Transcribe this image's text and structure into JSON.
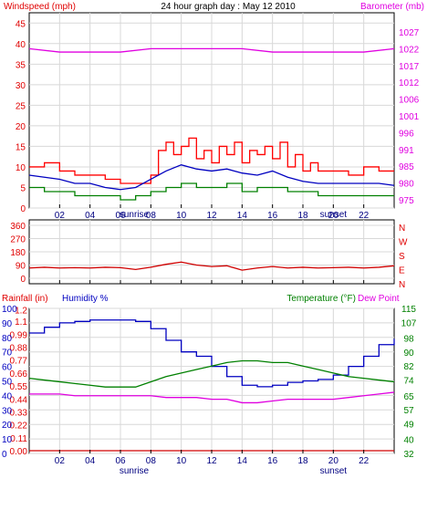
{
  "chart_data": [
    {
      "type": "line",
      "title": "24 hour graph day : May 12 2010",
      "left_label": "Windspeed (mph)",
      "right_label": "Barometer (mb)",
      "x_ticks": [
        "02",
        "04",
        "06",
        "08",
        "10",
        "12",
        "14",
        "16",
        "18",
        "20",
        "22"
      ],
      "x_range": [
        0,
        24
      ],
      "sunrise_label": "sunrise",
      "sunset_label": "sunset",
      "sunrise_hour": 6.9,
      "sunset_hour": 20.0,
      "y_left_ticks": [
        "0",
        "5",
        "10",
        "15",
        "20",
        "25",
        "30",
        "35",
        "40",
        "45"
      ],
      "y_left_range": [
        0,
        47.5
      ],
      "y_right_ticks": [
        "975",
        "980",
        "985",
        "991",
        "996",
        "1001",
        "1006",
        "1012",
        "1017",
        "1022",
        "1027"
      ],
      "series": [
        {
          "color": "#ff0000",
          "style": "step",
          "x": [
            0,
            1,
            2,
            3,
            4,
            5,
            6,
            7,
            8,
            8.5,
            9,
            9.5,
            10,
            10.5,
            11,
            11.5,
            12,
            12.5,
            13,
            13.5,
            14,
            14.5,
            15,
            15.5,
            16,
            16.5,
            17,
            17.5,
            18,
            18.5,
            19,
            20,
            21,
            22,
            23,
            24
          ],
          "y": [
            10,
            11,
            9,
            8,
            8,
            7,
            6,
            6,
            8,
            14,
            16,
            13,
            15,
            17,
            12,
            14,
            11,
            15,
            13,
            16,
            11,
            14,
            13,
            15,
            12,
            16,
            10,
            13,
            9,
            11,
            9,
            9,
            8,
            10,
            9,
            9
          ]
        },
        {
          "color": "#0000c0",
          "style": "line",
          "x": [
            0,
            1,
            2,
            3,
            4,
            5,
            6,
            7,
            8,
            9,
            10,
            11,
            12,
            13,
            14,
            15,
            16,
            17,
            18,
            19,
            20,
            21,
            22,
            23,
            24
          ],
          "y": [
            8,
            7.5,
            7,
            6,
            6,
            5,
            4.5,
            5,
            7,
            9,
            10.5,
            9.5,
            9,
            9.5,
            8.5,
            8,
            9,
            7.5,
            6.5,
            6,
            6,
            6,
            6,
            6,
            5.5
          ]
        },
        {
          "color": "#008000",
          "style": "step",
          "x": [
            0,
            1,
            2,
            3,
            4,
            5,
            6,
            7,
            8,
            9,
            10,
            11,
            12,
            13,
            14,
            15,
            16,
            17,
            18,
            19,
            20,
            21,
            22,
            23,
            24
          ],
          "y": [
            5,
            4,
            4,
            3,
            3,
            3,
            2,
            3,
            4,
            5,
            6,
            5,
            5,
            6,
            4,
            5,
            5,
            4,
            4,
            3,
            3,
            3,
            3,
            3,
            3
          ]
        },
        {
          "color": "#e000e0",
          "axis": "right",
          "style": "line",
          "x": [
            0,
            2,
            4,
            6,
            8,
            10,
            12,
            14,
            16,
            18,
            20,
            22,
            24
          ],
          "y": [
            1022,
            1021,
            1021,
            1021,
            1022,
            1022,
            1022,
            1022,
            1021,
            1021,
            1021,
            1021,
            1022
          ]
        }
      ]
    },
    {
      "type": "line",
      "left_ticks": [
        "360",
        "270",
        "180",
        "90",
        "0"
      ],
      "y_range": [
        0,
        360
      ],
      "right_letters": [
        "N",
        "W",
        "S",
        "E",
        "N"
      ],
      "x_ticks": [
        "02",
        "04",
        "06",
        "08",
        "10",
        "12",
        "14",
        "16",
        "18",
        "20",
        "22"
      ],
      "x_range": [
        0,
        24
      ],
      "series": [
        {
          "color": "#d00000",
          "x": [
            0,
            1,
            2,
            3,
            4,
            5,
            6,
            7,
            8,
            9,
            10,
            11,
            12,
            13,
            14,
            15,
            16,
            17,
            18,
            19,
            20,
            21,
            22,
            23,
            24
          ],
          "y": [
            70,
            75,
            70,
            72,
            70,
            75,
            72,
            60,
            75,
            95,
            110,
            90,
            80,
            85,
            55,
            70,
            80,
            70,
            75,
            70,
            72,
            75,
            70,
            75,
            85
          ]
        }
      ]
    },
    {
      "type": "line",
      "left_label_1": "Rainfall (in)",
      "left_label_2": "Humidity %",
      "right_label_1": "Temperature (°F)",
      "right_label_2": "Dew Point",
      "humidity_ticks": [
        "100",
        "90",
        "80",
        "70",
        "60",
        "50",
        "40",
        "30",
        "20",
        "10",
        "0"
      ],
      "humidity_range": [
        0,
        100
      ],
      "rain_ticks": [
        "1.2",
        "1.1",
        "0.99",
        "0.88",
        "0.77",
        "0.66",
        "0.55",
        "0.44",
        "0.33",
        "0.22",
        "0.11",
        "0.00"
      ],
      "rain_range": [
        0,
        1.21
      ],
      "temp_ticks": [
        "115",
        "107",
        "98",
        "90",
        "82",
        "74",
        "65",
        "57",
        "49",
        "40",
        "32"
      ],
      "temp_range": [
        32,
        115
      ],
      "x_ticks": [
        "02",
        "04",
        "06",
        "08",
        "10",
        "12",
        "14",
        "16",
        "18",
        "20",
        "22"
      ],
      "x_range": [
        0,
        24
      ],
      "series": [
        {
          "color": "#0000c0",
          "axis": "humidity",
          "x": [
            0,
            1,
            2,
            3,
            4,
            5,
            6,
            6.5,
            7,
            8,
            9,
            10,
            11,
            12,
            13,
            14,
            15,
            16,
            17,
            18,
            19,
            20,
            21,
            22,
            23,
            24
          ],
          "y": [
            83,
            87,
            90,
            91,
            92,
            92,
            92,
            92,
            91,
            86,
            78,
            70,
            67,
            60,
            53,
            47,
            46,
            47,
            49,
            50,
            51,
            54,
            60,
            67,
            75,
            79
          ]
        },
        {
          "color": "#008000",
          "axis": "temp",
          "x": [
            0,
            1,
            2,
            3,
            4,
            5,
            6,
            7,
            8,
            9,
            10,
            11,
            12,
            13,
            14,
            15,
            16,
            17,
            18,
            19,
            20,
            21,
            22,
            23,
            24
          ],
          "y": [
            75,
            74,
            73,
            72,
            71,
            70,
            70,
            70,
            73,
            76,
            78,
            80,
            82,
            84,
            85,
            85,
            84,
            84,
            82,
            80,
            78,
            76,
            75,
            74,
            73
          ]
        },
        {
          "color": "#e000e0",
          "axis": "temp",
          "x": [
            0,
            1,
            2,
            3,
            4,
            5,
            6,
            7,
            8,
            9,
            10,
            11,
            12,
            13,
            14,
            15,
            16,
            17,
            18,
            19,
            20,
            21,
            22,
            23,
            24
          ],
          "y": [
            66,
            66,
            66,
            65,
            65,
            65,
            65,
            65,
            65,
            64,
            64,
            64,
            63,
            63,
            61,
            61,
            62,
            63,
            63,
            63,
            63,
            64,
            65,
            66,
            67
          ]
        },
        {
          "color": "#d00000",
          "axis": "rain",
          "x": [
            0,
            24
          ],
          "y": [
            0,
            0
          ]
        }
      ]
    }
  ]
}
